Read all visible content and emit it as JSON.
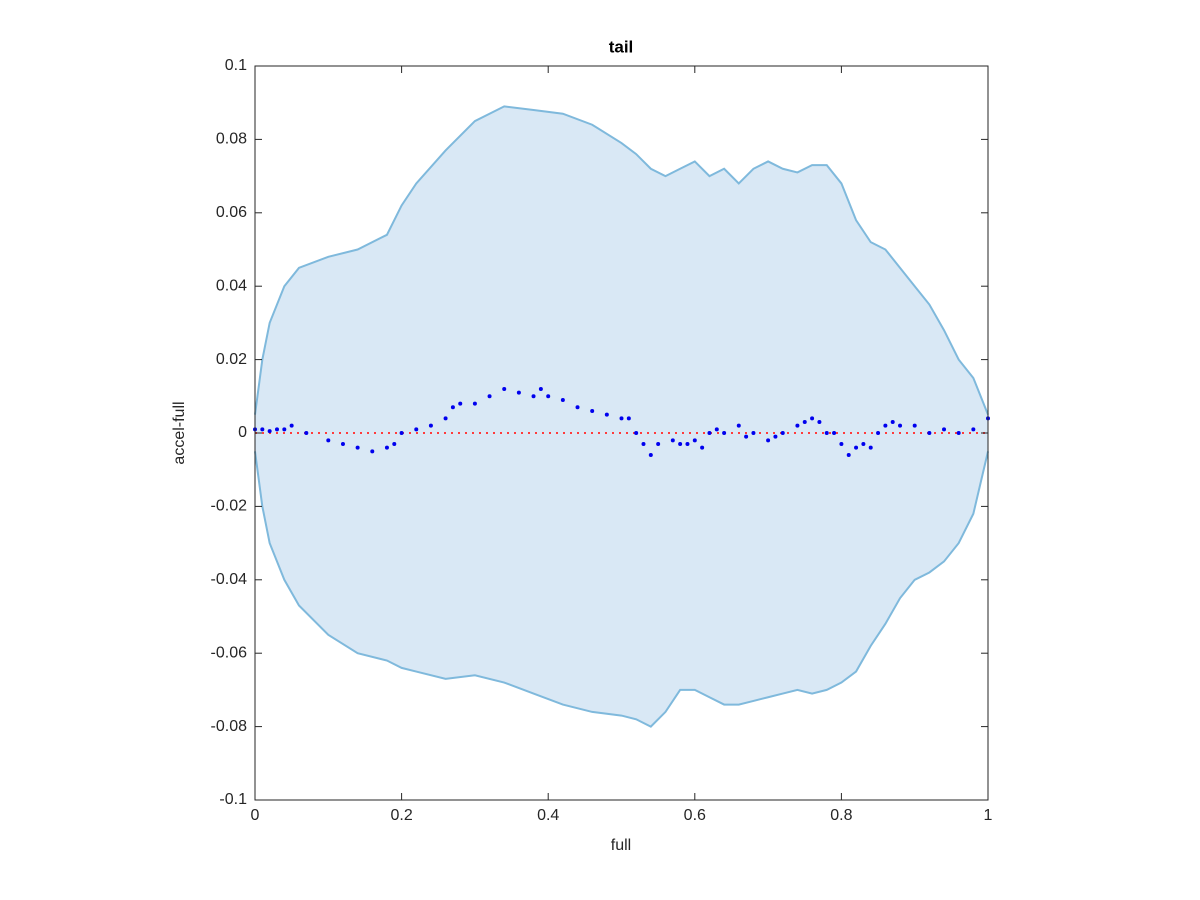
{
  "chart_data": {
    "type": "scatter",
    "title": "tail",
    "xlabel": "full",
    "ylabel": "accel-full",
    "xlim": [
      0,
      1
    ],
    "ylim": [
      -0.1,
      0.1
    ],
    "xticks": [
      0,
      0.2,
      0.4,
      0.6,
      0.8,
      1
    ],
    "yticks": [
      -0.1,
      -0.08,
      -0.06,
      -0.04,
      -0.02,
      0,
      0.02,
      0.04,
      0.06,
      0.08,
      0.1
    ],
    "band": {
      "color": "#7fb9dc",
      "fill": "#d9e8f5",
      "x": [
        0,
        0.01,
        0.02,
        0.04,
        0.06,
        0.1,
        0.14,
        0.18,
        0.2,
        0.22,
        0.26,
        0.3,
        0.34,
        0.38,
        0.42,
        0.46,
        0.5,
        0.52,
        0.54,
        0.56,
        0.58,
        0.6,
        0.62,
        0.64,
        0.66,
        0.68,
        0.7,
        0.72,
        0.74,
        0.76,
        0.78,
        0.8,
        0.82,
        0.84,
        0.86,
        0.88,
        0.9,
        0.92,
        0.94,
        0.96,
        0.98,
        1
      ],
      "upper": [
        0.005,
        0.02,
        0.03,
        0.04,
        0.045,
        0.048,
        0.05,
        0.054,
        0.062,
        0.068,
        0.077,
        0.085,
        0.089,
        0.088,
        0.087,
        0.084,
        0.079,
        0.076,
        0.072,
        0.07,
        0.072,
        0.074,
        0.07,
        0.072,
        0.068,
        0.072,
        0.074,
        0.072,
        0.071,
        0.073,
        0.073,
        0.068,
        0.058,
        0.052,
        0.05,
        0.045,
        0.04,
        0.035,
        0.028,
        0.02,
        0.015,
        0.005
      ],
      "lower": [
        -0.005,
        -0.02,
        -0.03,
        -0.04,
        -0.047,
        -0.055,
        -0.06,
        -0.062,
        -0.064,
        -0.065,
        -0.067,
        -0.066,
        -0.068,
        -0.071,
        -0.074,
        -0.076,
        -0.077,
        -0.078,
        -0.08,
        -0.076,
        -0.07,
        -0.07,
        -0.072,
        -0.074,
        -0.074,
        -0.073,
        -0.072,
        -0.071,
        -0.07,
        -0.071,
        -0.07,
        -0.068,
        -0.065,
        -0.058,
        -0.052,
        -0.045,
        -0.04,
        -0.038,
        -0.035,
        -0.03,
        -0.022,
        -0.005
      ]
    },
    "hline": {
      "value": 0,
      "color": "#ff3b3b"
    },
    "color": "#0000ee",
    "x": [
      0,
      0.01,
      0.02,
      0.03,
      0.04,
      0.05,
      0.07,
      0.1,
      0.12,
      0.14,
      0.16,
      0.18,
      0.19,
      0.2,
      0.22,
      0.24,
      0.26,
      0.27,
      0.28,
      0.3,
      0.32,
      0.34,
      0.36,
      0.38,
      0.39,
      0.4,
      0.42,
      0.44,
      0.46,
      0.48,
      0.5,
      0.51,
      0.52,
      0.53,
      0.54,
      0.55,
      0.57,
      0.58,
      0.59,
      0.6,
      0.61,
      0.62,
      0.63,
      0.64,
      0.66,
      0.67,
      0.68,
      0.7,
      0.71,
      0.72,
      0.74,
      0.75,
      0.76,
      0.77,
      0.78,
      0.79,
      0.8,
      0.81,
      0.82,
      0.83,
      0.84,
      0.85,
      0.86,
      0.87,
      0.88,
      0.9,
      0.92,
      0.94,
      0.96,
      0.98,
      1
    ],
    "values": [
      0.001,
      0.001,
      0.0005,
      0.001,
      0.001,
      0.002,
      0,
      -0.002,
      -0.003,
      -0.004,
      -0.005,
      -0.004,
      -0.003,
      0,
      0.001,
      0.002,
      0.004,
      0.007,
      0.008,
      0.008,
      0.01,
      0.012,
      0.011,
      0.01,
      0.012,
      0.01,
      0.009,
      0.007,
      0.006,
      0.005,
      0.004,
      0.004,
      0,
      -0.003,
      -0.006,
      -0.003,
      -0.002,
      -0.003,
      -0.003,
      -0.002,
      -0.004,
      0,
      0.001,
      0,
      0.002,
      -0.001,
      0,
      -0.002,
      -0.001,
      0,
      0.002,
      0.003,
      0.004,
      0.003,
      0,
      0,
      -0.003,
      -0.006,
      -0.004,
      -0.003,
      -0.004,
      0,
      0.002,
      0.003,
      0.002,
      0.002,
      0,
      0.001,
      0,
      0.001,
      0.004
    ]
  }
}
